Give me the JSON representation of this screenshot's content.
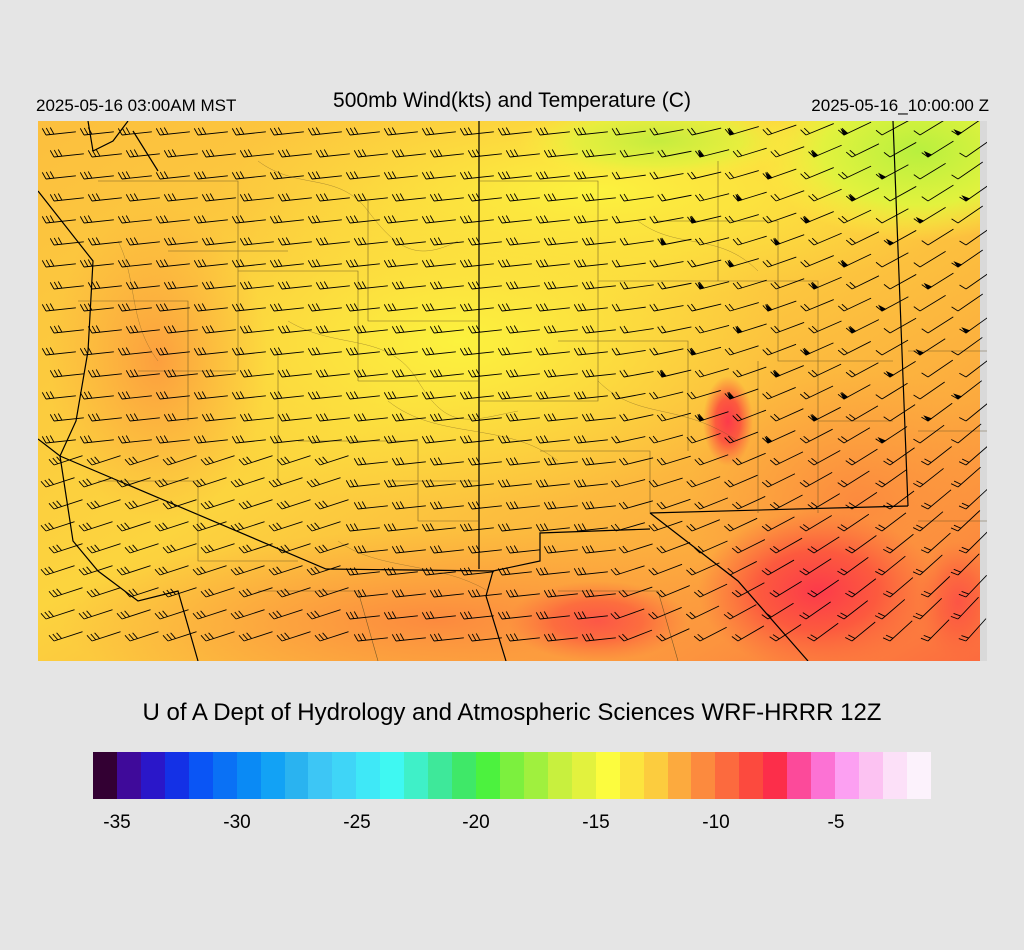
{
  "header": {
    "valid_local": "2025-05-16 03:00AM MST",
    "title": "500mb Wind(kts) and Temperature (C)",
    "valid_utc": "2025-05-16_10:00:00 Z"
  },
  "credit": "U of A Dept of Hydrology and Atmospheric Sciences WRF-HRRR 12Z",
  "colorbar": {
    "colors": [
      "#330033",
      "#3f0a9a",
      "#2a17c9",
      "#1431e6",
      "#0a55f5",
      "#0a71f5",
      "#0a8af5",
      "#12a2f5",
      "#2ab3f0",
      "#3dc6f5",
      "#3fd5f7",
      "#3fe8f7",
      "#3ff8f2",
      "#3ff0c8",
      "#3ee89a",
      "#3fe868",
      "#4cf23e",
      "#7cf03e",
      "#a0f03e",
      "#c8f03e",
      "#e2f23e",
      "#fcfc3e",
      "#fce43e",
      "#fccc3e",
      "#fcaa3e",
      "#fc8a3e",
      "#fc6a3e",
      "#fc4a3e",
      "#fc2e4a",
      "#fc4a9a",
      "#fc72d4",
      "#fca0f2",
      "#fcc2f2",
      "#fce0f8",
      "#fcf2fc"
    ],
    "tick_labels": [
      "-35",
      "-30",
      "-25",
      "-20",
      "-15",
      "-10",
      "-5"
    ]
  },
  "map": {
    "color_field": "500mb temperature (C)",
    "wind_symbol": "wind-barbs"
  }
}
